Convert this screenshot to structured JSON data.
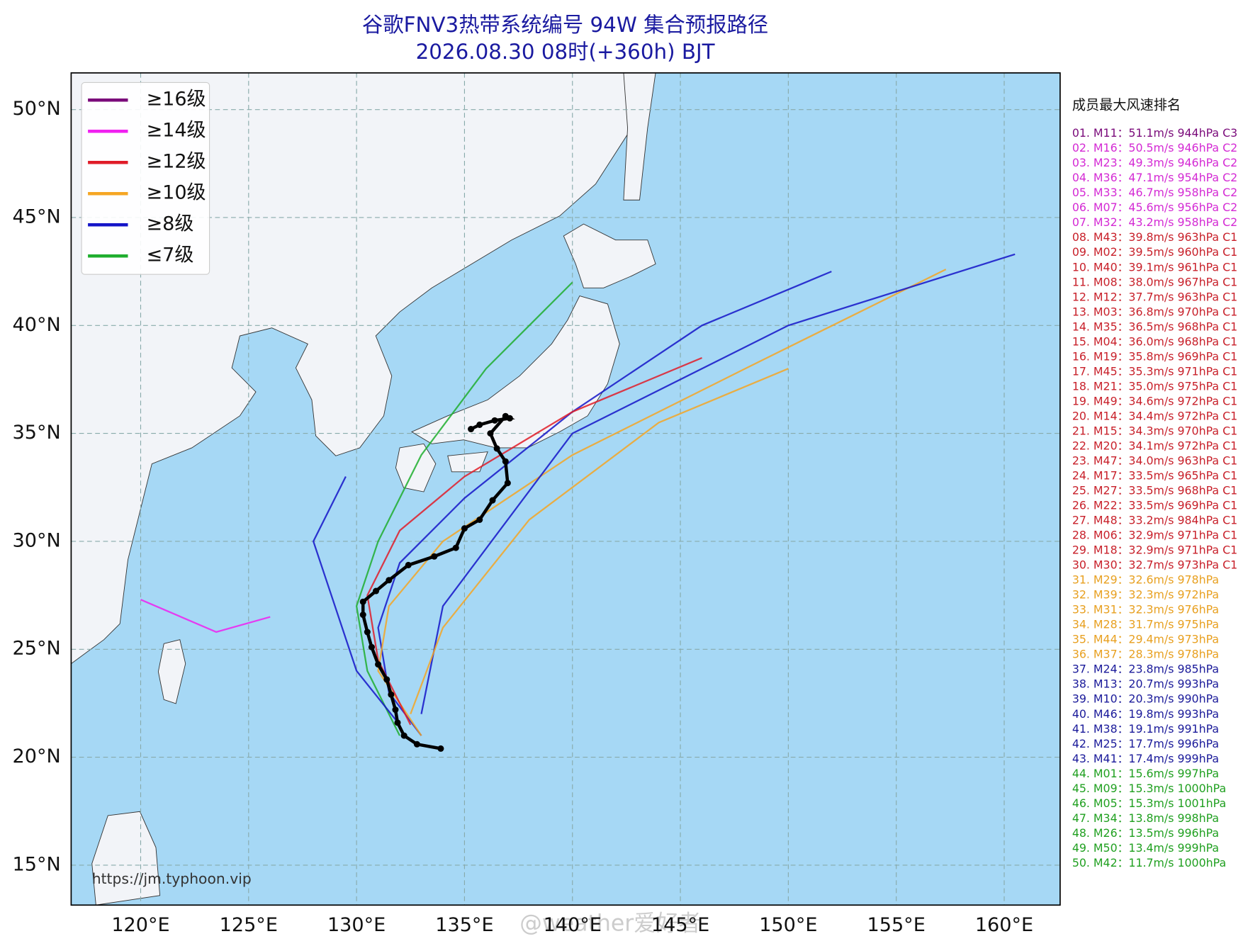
{
  "map": {
    "title": "谷歌FNV3热带系统编号 94W 集合预报路径",
    "subtitle": "2026.08.30 08时(+360h) BJT",
    "xlim": [
      116.78,
      162.59
    ],
    "ylim": [
      13.15,
      51.7
    ],
    "xticks": [
      {
        "value": 120,
        "label": "120°E"
      },
      {
        "value": 125,
        "label": "125°E"
      },
      {
        "value": 130,
        "label": "130°E"
      },
      {
        "value": 135,
        "label": "135°E"
      },
      {
        "value": 140,
        "label": "140°E"
      },
      {
        "value": 145,
        "label": "145°E"
      },
      {
        "value": 150,
        "label": "150°E"
      },
      {
        "value": 155,
        "label": "155°E"
      },
      {
        "value": 160,
        "label": "160°E"
      }
    ],
    "yticks": [
      {
        "value": 50,
        "label": "50°N"
      },
      {
        "value": 45,
        "label": "45°N"
      },
      {
        "value": 40,
        "label": "40°N"
      },
      {
        "value": 35,
        "label": "35°N"
      },
      {
        "value": 30,
        "label": "30°N"
      },
      {
        "value": 25,
        "label": "25°N"
      },
      {
        "value": 20,
        "label": "20°N"
      },
      {
        "value": 15,
        "label": "15°N"
      }
    ],
    "legend": [
      {
        "name": "≥16级",
        "color": "#7a0a7a"
      },
      {
        "name": "≥14级",
        "color": "#f020f0"
      },
      {
        "name": "≥12级",
        "color": "#e01c28"
      },
      {
        "name": "≥10级",
        "color": "#f5a623"
      },
      {
        "name": "≥8级",
        "color": "#1414c8"
      },
      {
        "name": "≤7级",
        "color": "#1fae2e"
      }
    ],
    "tracks": [
      {
        "color": "#1414c8",
        "lon": [
          133,
          131.5,
          131,
          132,
          135,
          140,
          146,
          152
        ],
        "lat": [
          21,
          23,
          26,
          29,
          32,
          36,
          40,
          42.5
        ]
      },
      {
        "color": "#f5a623",
        "lon": [
          133,
          131,
          131.5,
          134,
          140,
          148,
          157.3
        ],
        "lat": [
          21,
          24,
          27,
          30,
          34,
          38,
          42.6
        ]
      },
      {
        "color": "#e01c28",
        "lon": [
          132.5,
          131,
          130.5,
          132,
          135,
          140,
          146
        ],
        "lat": [
          21.5,
          24.5,
          27.5,
          30.5,
          33,
          36,
          38.5
        ]
      },
      {
        "color": "#1fae2e",
        "lon": [
          132,
          130.5,
          130,
          131,
          133,
          136,
          140
        ],
        "lat": [
          21,
          24,
          27,
          30,
          34,
          38,
          42
        ]
      },
      {
        "color": "#1414c8",
        "lon": [
          132,
          130,
          129,
          128,
          129.5
        ],
        "lat": [
          21.5,
          24,
          27,
          30,
          33
        ]
      },
      {
        "color": "#f020f0",
        "lon": [
          126,
          123.5,
          120
        ],
        "lat": [
          26.5,
          25.8,
          27.3
        ]
      },
      {
        "color": "#1414c8",
        "lon": [
          133,
          134,
          140,
          150,
          160.5
        ],
        "lat": [
          22,
          27,
          35,
          40,
          43.3
        ]
      },
      {
        "color": "#f5a623",
        "lon": [
          132.5,
          134,
          138,
          144,
          150
        ],
        "lat": [
          22,
          26,
          31,
          35.5,
          38
        ]
      }
    ],
    "mean_track": {
      "lon": [
        133.9,
        132.8,
        132.2,
        131.9,
        131.8,
        131.6,
        131.4,
        131.0,
        130.7,
        130.5,
        130.3,
        130.3,
        130.9,
        131.5,
        132.4,
        133.6,
        134.6,
        135.0,
        135.7,
        136.3,
        137.0,
        136.9,
        136.5,
        136.2,
        136.9,
        137.1,
        136.4,
        135.7,
        135.3
      ],
      "lat": [
        20.4,
        20.6,
        21.0,
        21.6,
        22.2,
        22.9,
        23.6,
        24.3,
        25.1,
        25.8,
        26.6,
        27.2,
        27.7,
        28.2,
        28.9,
        29.3,
        29.7,
        30.6,
        31.0,
        31.9,
        32.7,
        33.7,
        34.3,
        35.0,
        35.8,
        35.7,
        35.6,
        35.4,
        35.2
      ]
    },
    "ranking": {
      "title": "成员最大风速排名",
      "groups": [
        {
          "color": "#7a0a7a",
          "entries": [
            "01. M11：51.1m/s 944hPa C3"
          ]
        },
        {
          "color": "#d42ad4",
          "entries": [
            "02. M16：50.5m/s 946hPa C2",
            "03. M23：49.3m/s 946hPa C2",
            "04. M36：47.1m/s 954hPa C2",
            "05. M33：46.7m/s 958hPa C2",
            "06. M07：45.6m/s 956hPa C2",
            "07. M32：43.2m/s 958hPa C2"
          ]
        },
        {
          "color": "#c8202a",
          "entries": [
            "08. M43：39.8m/s 963hPa C1",
            "09. M02：39.5m/s 960hPa C1",
            "10. M40：39.1m/s 961hPa C1",
            "11. M08：38.0m/s 967hPa C1",
            "12. M12：37.7m/s 963hPa C1",
            "13. M03：36.8m/s 970hPa C1",
            "14. M35：36.5m/s 968hPa C1",
            "15. M04：36.0m/s 968hPa C1",
            "16. M19：35.8m/s 969hPa C1",
            "17. M45：35.3m/s 971hPa C1",
            "18. M21：35.0m/s 975hPa C1",
            "19. M49：34.6m/s 972hPa C1",
            "20. M14：34.4m/s 972hPa C1",
            "21. M15：34.3m/s 970hPa C1",
            "22. M20：34.1m/s 972hPa C1",
            "23. M47：34.0m/s 963hPa C1",
            "24. M17：33.5m/s 965hPa C1",
            "25. M27：33.5m/s 968hPa C1",
            "26. M22：33.5m/s 969hPa C1",
            "27. M48：33.2m/s 984hPa C1",
            "28. M06：32.9m/s 971hPa C1",
            "29. M18：32.9m/s 971hPa C1",
            "30. M30：32.7m/s 973hPa C1"
          ]
        },
        {
          "color": "#e8a020",
          "entries": [
            "31. M29：32.6m/s 978hPa",
            "32. M39：32.3m/s 972hPa",
            "33. M31：32.3m/s 976hPa",
            "34. M28：31.7m/s 975hPa",
            "35. M44：29.4m/s 973hPa",
            "36. M37：28.3m/s 978hPa"
          ]
        },
        {
          "color": "#1a1a9a",
          "entries": [
            "37. M24：23.8m/s 985hPa",
            "38. M13：20.7m/s 993hPa",
            "39. M10：20.3m/s 990hPa",
            "40. M46：19.8m/s 993hPa",
            "41. M38：19.1m/s 991hPa",
            "42. M25：17.7m/s 996hPa",
            "43. M41：17.4m/s 999hPa"
          ]
        },
        {
          "color": "#20a020",
          "entries": [
            "44. M01：15.6m/s 997hPa",
            "45. M09：15.3m/s 1000hPa",
            "46. M05：15.3m/s 1001hPa",
            "47. M34：13.8m/s 998hPa",
            "48. M26：13.5m/s 996hPa",
            "49. M50：13.4m/s 999hPa",
            "50. M42：11.7m/s 1000hPa"
          ]
        }
      ]
    },
    "source": "https://jm.typhoon.vip",
    "watermark": "@weather爱好者"
  }
}
